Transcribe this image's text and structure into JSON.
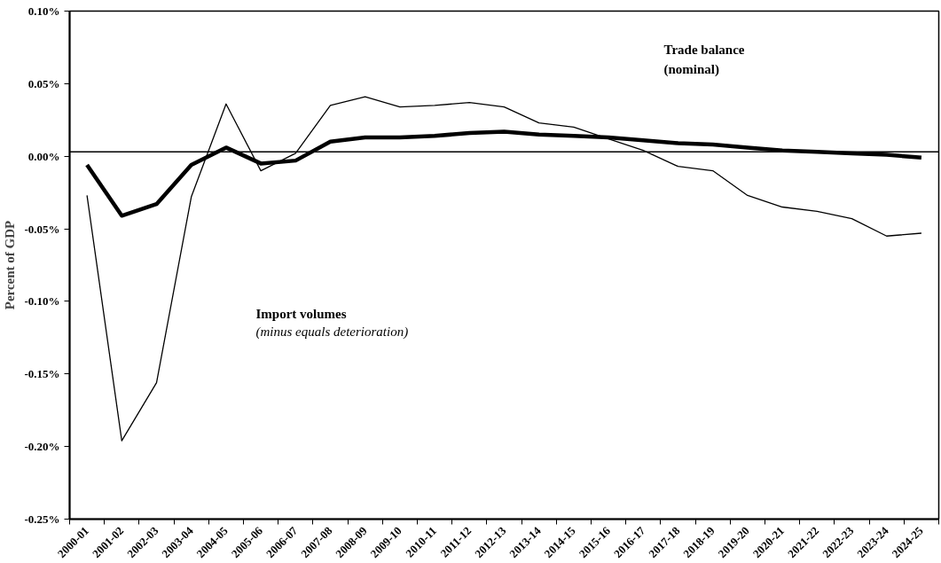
{
  "chart_data": {
    "type": "line",
    "ylabel": "Percent of GDP",
    "categories": [
      "2000-01",
      "2001-02",
      "2002-03",
      "2003-04",
      "2004-05",
      "2005-06",
      "2006-07",
      "2007-08",
      "2008-09",
      "2009-10",
      "2010-11",
      "2011-12",
      "2012-13",
      "2013-14",
      "2014-15",
      "2015-16",
      "2016-17",
      "2017-18",
      "2018-19",
      "2019-20",
      "2020-21",
      "2021-22",
      "2022-23",
      "2023-24",
      "2024-25"
    ],
    "series": [
      {
        "color": "#000000",
        "values": [
          -0.027,
          -0.196,
          -0.156,
          -0.028,
          0.036,
          -0.01,
          0.002,
          0.035,
          0.041,
          0.034,
          0.035,
          0.037,
          0.034,
          0.023,
          0.02,
          0.012,
          0.004,
          -0.007,
          -0.01,
          -0.027,
          -0.035,
          -0.038,
          -0.043,
          -0.055,
          -0.053
        ]
      },
      {
        "color": "#000000",
        "values": [
          -0.006,
          -0.041,
          -0.033,
          -0.006,
          0.006,
          -0.005,
          -0.003,
          0.01,
          0.013,
          0.013,
          0.014,
          0.016,
          0.017,
          0.015,
          0.014,
          0.013,
          0.011,
          0.009,
          0.008,
          0.006,
          0.004,
          0.003,
          0.002,
          0.001,
          -0.001
        ]
      }
    ],
    "ylim": [
      -0.25,
      0.1
    ],
    "yticks": [
      {
        "value": -0.25,
        "label": "-0.25%"
      },
      {
        "value": -0.2,
        "label": "-0.20%"
      },
      {
        "value": -0.15,
        "label": "-0.15%"
      },
      {
        "value": -0.1,
        "label": "-0.10%"
      },
      {
        "value": -0.05,
        "label": "-0.05%"
      },
      {
        "value": 0.0,
        "label": "0.00%"
      },
      {
        "value": 0.05,
        "label": "0.05%"
      },
      {
        "value": 0.1,
        "label": "0.10%"
      }
    ],
    "ref_lines": [
      {
        "axis": "y",
        "value": 0.003,
        "color": "#000000"
      }
    ],
    "annotations": [
      "Import volumes",
      "(minus equals deterioration)",
      "Trade balance",
      "(nominal)"
    ],
    "grid": false,
    "marker": "none",
    "line_style": "solid"
  }
}
